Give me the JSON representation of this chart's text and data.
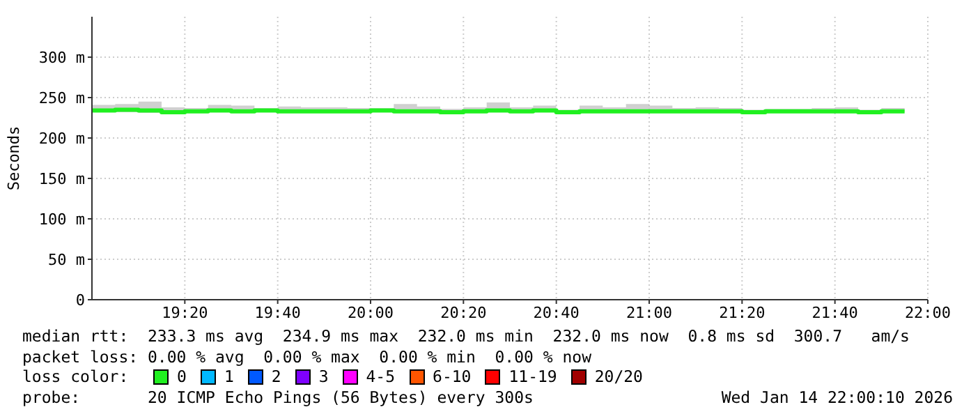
{
  "chart_data": {
    "type": "step",
    "ylabel": "Seconds",
    "legend_title": "loss color:",
    "legend": "bottom",
    "grid": true,
    "marker": "none",
    "line_style": "solid",
    "x": [
      "2026-01-14T19:00",
      "2026-01-14T19:05",
      "2026-01-14T19:10",
      "2026-01-14T19:15",
      "2026-01-14T19:20",
      "2026-01-14T19:25",
      "2026-01-14T19:30",
      "2026-01-14T19:35",
      "2026-01-14T19:40",
      "2026-01-14T19:45",
      "2026-01-14T19:50",
      "2026-01-14T19:55",
      "2026-01-14T20:00",
      "2026-01-14T20:05",
      "2026-01-14T20:10",
      "2026-01-14T20:15",
      "2026-01-14T20:20",
      "2026-01-14T20:25",
      "2026-01-14T20:30",
      "2026-01-14T20:35",
      "2026-01-14T20:40",
      "2026-01-14T20:45",
      "2026-01-14T20:50",
      "2026-01-14T20:55",
      "2026-01-14T21:00",
      "2026-01-14T21:05",
      "2026-01-14T21:10",
      "2026-01-14T21:15",
      "2026-01-14T21:20",
      "2026-01-14T21:25",
      "2026-01-14T21:30",
      "2026-01-14T21:35",
      "2026-01-14T21:40",
      "2026-01-14T21:45",
      "2026-01-14T21:50",
      "2026-01-14T21:55"
    ],
    "series": [
      {
        "name": "0",
        "color": "#20f020",
        "values": [
          234,
          235,
          234,
          232,
          233,
          234,
          233,
          234,
          233,
          233,
          233,
          233,
          234,
          233,
          233,
          232,
          233,
          234,
          233,
          234,
          232,
          233,
          233,
          233,
          233,
          233,
          233,
          233,
          232,
          233,
          233,
          233,
          233,
          232,
          233,
          233
        ],
        "lower": [
          232,
          232,
          231,
          231,
          231,
          232,
          231,
          232,
          232,
          232,
          232,
          232,
          232,
          232,
          231,
          231,
          232,
          232,
          232,
          232,
          231,
          232,
          232,
          232,
          232,
          232,
          232,
          232,
          231,
          232,
          232,
          232,
          232,
          231,
          232,
          232
        ],
        "upper": [
          241,
          242,
          245,
          238,
          237,
          241,
          240,
          237,
          239,
          238,
          238,
          237,
          237,
          242,
          239,
          236,
          238,
          244,
          238,
          240,
          235,
          240,
          238,
          242,
          240,
          237,
          238,
          237,
          235,
          236,
          236,
          237,
          238,
          235,
          237,
          236
        ]
      },
      {
        "name": "1",
        "color": "#00b8ff",
        "values": [
          null,
          null,
          null,
          null,
          null,
          null,
          null,
          null,
          null,
          null,
          null,
          null,
          null,
          null,
          null,
          null,
          null,
          null,
          null,
          null,
          null,
          null,
          null,
          null,
          null,
          null,
          null,
          null,
          null,
          null,
          null,
          null,
          null,
          null,
          null,
          null
        ]
      },
      {
        "name": "2",
        "color": "#0059ff",
        "values": [
          null,
          null,
          null,
          null,
          null,
          null,
          null,
          null,
          null,
          null,
          null,
          null,
          null,
          null,
          null,
          null,
          null,
          null,
          null,
          null,
          null,
          null,
          null,
          null,
          null,
          null,
          null,
          null,
          null,
          null,
          null,
          null,
          null,
          null,
          null,
          null
        ]
      },
      {
        "name": "3",
        "color": "#7e00ff",
        "values": [
          null,
          null,
          null,
          null,
          null,
          null,
          null,
          null,
          null,
          null,
          null,
          null,
          null,
          null,
          null,
          null,
          null,
          null,
          null,
          null,
          null,
          null,
          null,
          null,
          null,
          null,
          null,
          null,
          null,
          null,
          null,
          null,
          null,
          null,
          null,
          null
        ]
      },
      {
        "name": "4-5",
        "color": "#ff00ff",
        "values": [
          null,
          null,
          null,
          null,
          null,
          null,
          null,
          null,
          null,
          null,
          null,
          null,
          null,
          null,
          null,
          null,
          null,
          null,
          null,
          null,
          null,
          null,
          null,
          null,
          null,
          null,
          null,
          null,
          null,
          null,
          null,
          null,
          null,
          null,
          null,
          null
        ]
      },
      {
        "name": "6-10",
        "color": "#ff5500",
        "values": [
          null,
          null,
          null,
          null,
          null,
          null,
          null,
          null,
          null,
          null,
          null,
          null,
          null,
          null,
          null,
          null,
          null,
          null,
          null,
          null,
          null,
          null,
          null,
          null,
          null,
          null,
          null,
          null,
          null,
          null,
          null,
          null,
          null,
          null,
          null,
          null
        ]
      },
      {
        "name": "11-19",
        "color": "#ff0000",
        "values": [
          null,
          null,
          null,
          null,
          null,
          null,
          null,
          null,
          null,
          null,
          null,
          null,
          null,
          null,
          null,
          null,
          null,
          null,
          null,
          null,
          null,
          null,
          null,
          null,
          null,
          null,
          null,
          null,
          null,
          null,
          null,
          null,
          null,
          null,
          null,
          null
        ]
      },
      {
        "name": "20/20",
        "color": "#a10000",
        "values": [
          null,
          null,
          null,
          null,
          null,
          null,
          null,
          null,
          null,
          null,
          null,
          null,
          null,
          null,
          null,
          null,
          null,
          null,
          null,
          null,
          null,
          null,
          null,
          null,
          null,
          null,
          null,
          null,
          null,
          null,
          null,
          null,
          null,
          null,
          null,
          null
        ]
      }
    ],
    "xlim": [
      "2026-01-14T19:00",
      "2026-01-14T22:00"
    ],
    "xticks": [
      {
        "value": "2026-01-14T19:20",
        "label": "19:20"
      },
      {
        "value": "2026-01-14T19:40",
        "label": "19:40"
      },
      {
        "value": "2026-01-14T20:00",
        "label": "20:00"
      },
      {
        "value": "2026-01-14T20:20",
        "label": "20:20"
      },
      {
        "value": "2026-01-14T20:40",
        "label": "20:40"
      },
      {
        "value": "2026-01-14T21:00",
        "label": "21:00"
      },
      {
        "value": "2026-01-14T21:20",
        "label": "21:20"
      },
      {
        "value": "2026-01-14T21:40",
        "label": "21:40"
      },
      {
        "value": "2026-01-14T22:00",
        "label": "22:00"
      }
    ],
    "ylim": [
      0,
      350
    ],
    "yticks": [
      0,
      {
        "value": 50,
        "label": "50 m"
      },
      {
        "value": 100,
        "label": "100 m"
      },
      {
        "value": 150,
        "label": "150 m"
      },
      {
        "value": 200,
        "label": "200 m"
      },
      {
        "value": 250,
        "label": "250 m"
      },
      {
        "value": 300,
        "label": "300 m"
      }
    ],
    "annotations": [
      "median rtt:  233.3 ms avg  234.9 ms max  232.0 ms min  232.0 ms now  0.8 ms sd  300.7   am/s",
      "packet loss: 0.00 % avg  0.00 % max  0.00 % min  0.00 % now",
      "probe:       20 ICMP Echo Pings (56 Bytes) every 300s",
      "Wed Jan 14 22:00:10 2026"
    ]
  }
}
